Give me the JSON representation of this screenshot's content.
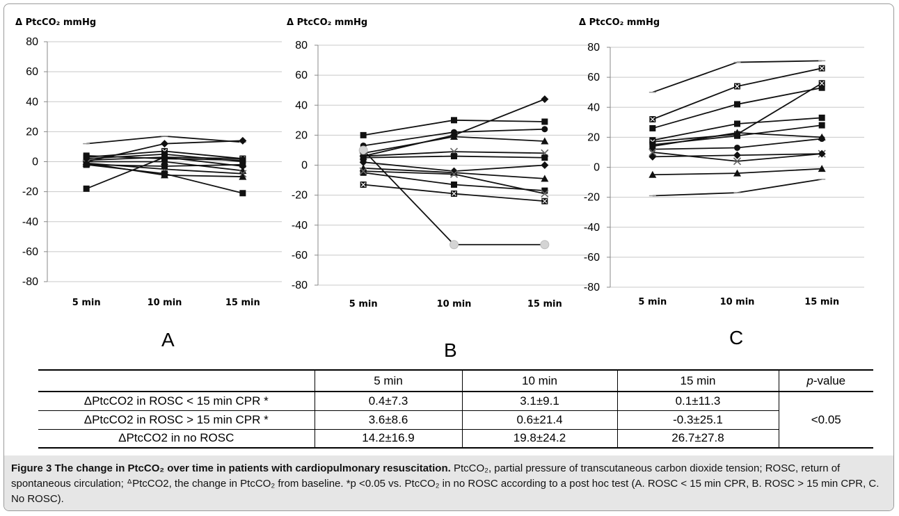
{
  "chart_data": [
    {
      "type": "line",
      "panel_label": "A",
      "ylabel": "Δ PtcCO₂ mmHg",
      "categories": [
        "5 min",
        "10 min",
        "15 min"
      ],
      "ylim": [
        -80,
        80
      ],
      "yticks": [
        80,
        60,
        40,
        20,
        0,
        -20,
        -40,
        -60,
        -80
      ],
      "grid": true,
      "series": [
        {
          "values": [
            12,
            17,
            13
          ],
          "marker": "none"
        },
        {
          "values": [
            -18,
            3,
            2
          ],
          "marker": "square"
        },
        {
          "values": [
            0,
            12,
            14
          ],
          "marker": "diamond"
        },
        {
          "values": [
            3,
            7,
            2
          ],
          "marker": "square-x"
        },
        {
          "values": [
            2,
            5,
            0
          ],
          "marker": "circle"
        },
        {
          "values": [
            1,
            3,
            -3
          ],
          "marker": "diamond"
        },
        {
          "values": [
            0,
            0,
            -6
          ],
          "marker": "triangle"
        },
        {
          "values": [
            -1,
            -5,
            -8
          ],
          "marker": "x"
        },
        {
          "values": [
            -2,
            -8,
            -21
          ],
          "marker": "square"
        },
        {
          "values": [
            -1,
            -9,
            -10
          ],
          "marker": "triangle"
        },
        {
          "values": [
            -2,
            -3,
            -2
          ],
          "marker": "square"
        },
        {
          "values": [
            4,
            2,
            1
          ],
          "marker": "square"
        }
      ]
    },
    {
      "type": "line",
      "panel_label": "B",
      "ylabel": "Δ PtcCO₂ mmHg",
      "categories": [
        "5 min",
        "10 min",
        "15 min"
      ],
      "ylim": [
        -80,
        80
      ],
      "yticks": [
        80,
        60,
        40,
        20,
        0,
        -20,
        -40,
        -60,
        -80
      ],
      "grid": true,
      "series": [
        {
          "values": [
            20,
            30,
            29
          ],
          "marker": "square"
        },
        {
          "values": [
            6,
            20,
            44
          ],
          "marker": "diamond"
        },
        {
          "values": [
            13,
            22,
            24
          ],
          "marker": "circle"
        },
        {
          "values": [
            8,
            19,
            16
          ],
          "marker": "triangle"
        },
        {
          "values": [
            10,
            -53,
            -53
          ],
          "marker": "gray-circle"
        },
        {
          "values": [
            6,
            9,
            8
          ],
          "marker": "x"
        },
        {
          "values": [
            5,
            6,
            5
          ],
          "marker": "square"
        },
        {
          "values": [
            2,
            -4,
            0
          ],
          "marker": "diamond"
        },
        {
          "values": [
            -2,
            -5,
            -9
          ],
          "marker": "triangle"
        },
        {
          "values": [
            -5,
            -13,
            -17
          ],
          "marker": "square"
        },
        {
          "values": [
            -4,
            -6,
            -19
          ],
          "marker": "x"
        },
        {
          "values": [
            -13,
            -19,
            -24
          ],
          "marker": "square-x"
        }
      ]
    },
    {
      "type": "line",
      "panel_label": "C",
      "ylabel": "Δ PtcCO₂ mmHg",
      "categories": [
        "5 min",
        "10 min",
        "15 min"
      ],
      "ylim": [
        -80,
        80
      ],
      "yticks": [
        80,
        60,
        40,
        20,
        0,
        -20,
        -40,
        -60,
        -80
      ],
      "grid": true,
      "series": [
        {
          "values": [
            50,
            70,
            71
          ],
          "marker": "none"
        },
        {
          "values": [
            32,
            54,
            66
          ],
          "marker": "square-x"
        },
        {
          "values": [
            26,
            42,
            53
          ],
          "marker": "square"
        },
        {
          "values": [
            18,
            29,
            33
          ],
          "marker": "square"
        },
        {
          "values": [
            17,
            22,
            56
          ],
          "marker": "square-x"
        },
        {
          "values": [
            15,
            21,
            28
          ],
          "marker": "square"
        },
        {
          "values": [
            14,
            23,
            20
          ],
          "marker": "triangle"
        },
        {
          "values": [
            12,
            13,
            19
          ],
          "marker": "circle"
        },
        {
          "values": [
            10,
            4,
            9
          ],
          "marker": "x"
        },
        {
          "values": [
            7,
            8,
            9
          ],
          "marker": "diamond"
        },
        {
          "values": [
            -5,
            -4,
            -1
          ],
          "marker": "triangle"
        },
        {
          "values": [
            -19,
            -17,
            -8
          ],
          "marker": "none"
        }
      ]
    }
  ],
  "table": {
    "headers": [
      "",
      "5 min",
      "10 min",
      "15 min",
      "p-value"
    ],
    "pvalue_italic": "p",
    "pvalue_rest": "-value",
    "rows": [
      {
        "label": "ΔPtcCO2 in ROSC < 15 min CPR *",
        "v5": "0.4±7.3",
        "v10": "3.1±9.1",
        "v15": "0.1±11.3"
      },
      {
        "label": "ΔPtcCO2 in ROSC > 15 min CPR *",
        "v5": "3.6±8.6",
        "v10": "0.6±21.4",
        "v15": "-0.3±25.1"
      },
      {
        "label": "ΔPtcCO2 in no ROSC",
        "v5": "14.2±16.9",
        "v10": "19.8±24.2",
        "v15": "26.7±27.8"
      }
    ],
    "pvalue": "<0.05"
  },
  "caption": {
    "lead": "Figure 3 The change in PtcCO₂ over time in patients with cardiopulmonary resuscitation.",
    "body": " PtcCO₂, partial pressure of transcutaneous carbon dioxide tension; ROSC, return of spontaneous circulation; ᐞPtcCO2, the change in PtcCO₂ from baseline. *p <0.05 vs. PtcCO₂ in no ROSC according to a post hoc test (A. ROSC < 15 min CPR, B. ROSC > 15 min CPR, C. No ROSC)."
  },
  "colors": {
    "line": "#111111",
    "grid": "#c8c8c8",
    "axis": "#888888",
    "caption_bg": "#e6e6e6"
  }
}
